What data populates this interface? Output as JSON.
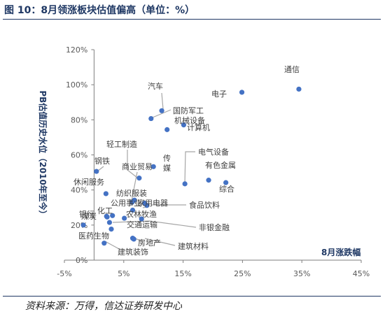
{
  "header": {
    "title": "图 10：8月领涨板块估值偏高（单位：%）"
  },
  "source": {
    "text": "资料来源：万得，信达证券研发中心"
  },
  "colors": {
    "point": "#4472c4",
    "title": "#1f3864",
    "axis": "#7f7f7f",
    "leader": "#a6a6a6"
  },
  "chart_data": {
    "type": "scatter",
    "title": "图 10：8月领涨板块估值偏高（单位：%）",
    "xlabel": "8月涨跌幅",
    "ylabel": "PB估值历史水位（2010年至今）",
    "xlim": [
      -5,
      45
    ],
    "ylim": [
      0,
      120
    ],
    "x_ticks": [
      -5,
      5,
      15,
      25,
      35,
      45
    ],
    "y_ticks": [
      0,
      20,
      40,
      60,
      80,
      100,
      120
    ],
    "x_tick_labels": [
      "-5%",
      "5%",
      "15%",
      "25%",
      "35%",
      "45%"
    ],
    "y_tick_labels": [
      "0%",
      "20%",
      "40%",
      "60%",
      "80%",
      "100%",
      "120%"
    ],
    "grid": false,
    "legend": "none",
    "points": [
      {
        "name": "通信",
        "x": 34.5,
        "y": 97.5
      },
      {
        "name": "电子",
        "x": 24.9,
        "y": 95.7
      },
      {
        "name": "汽车",
        "x": 11.4,
        "y": 85.2
      },
      {
        "name": "国防军工",
        "x": 9.6,
        "y": 80.7
      },
      {
        "name": "机械设备",
        "x": 15.1,
        "y": 77.1
      },
      {
        "name": "计算机",
        "x": 12.3,
        "y": 74.4
      },
      {
        "name": "钢铁",
        "x": 0.4,
        "y": 50.6
      },
      {
        "name": "轻工制造",
        "x": 7.6,
        "y": 46.8
      },
      {
        "name": "商业贸易",
        "x": 6.4,
        "y": 33.0
      },
      {
        "name": "传媒",
        "x": 10.0,
        "y": 53.3
      },
      {
        "name": "电气设备",
        "x": 15.3,
        "y": 43.5
      },
      {
        "name": "有色金属",
        "x": 19.3,
        "y": 45.6
      },
      {
        "name": "综合",
        "x": 22.2,
        "y": 44.2
      },
      {
        "name": "休闲服务",
        "x": 2.0,
        "y": 37.9
      },
      {
        "name": "纺织服装",
        "x": 6.8,
        "y": 34.2
      },
      {
        "name": "公用事业",
        "x": 6.5,
        "y": 28.5
      },
      {
        "name": "家用电器",
        "x": 8.9,
        "y": 31.2
      },
      {
        "name": "食品饮料",
        "x": 8.5,
        "y": 32.5
      },
      {
        "name": "化工",
        "x": 3.1,
        "y": 25.4
      },
      {
        "name": "农林牧渔",
        "x": 5.1,
        "y": 23.9
      },
      {
        "name": "银行",
        "x": 2.1,
        "y": 25.0
      },
      {
        "name": "煤炭",
        "x": 2.2,
        "y": 24.6
      },
      {
        "name": "采掘",
        "x": -1.8,
        "y": 20.0
      },
      {
        "name": "交通运输",
        "x": 8.0,
        "y": 23.5
      },
      {
        "name": "非银金融",
        "x": 2.6,
        "y": 21.5
      },
      {
        "name": "医药生物",
        "x": 2.9,
        "y": 17.7
      },
      {
        "name": "房地产",
        "x": 6.5,
        "y": 12.5
      },
      {
        "name": "建筑材料",
        "x": 6.7,
        "y": 12.0
      },
      {
        "name": "建筑装饰",
        "x": 1.7,
        "y": 9.7
      }
    ]
  }
}
